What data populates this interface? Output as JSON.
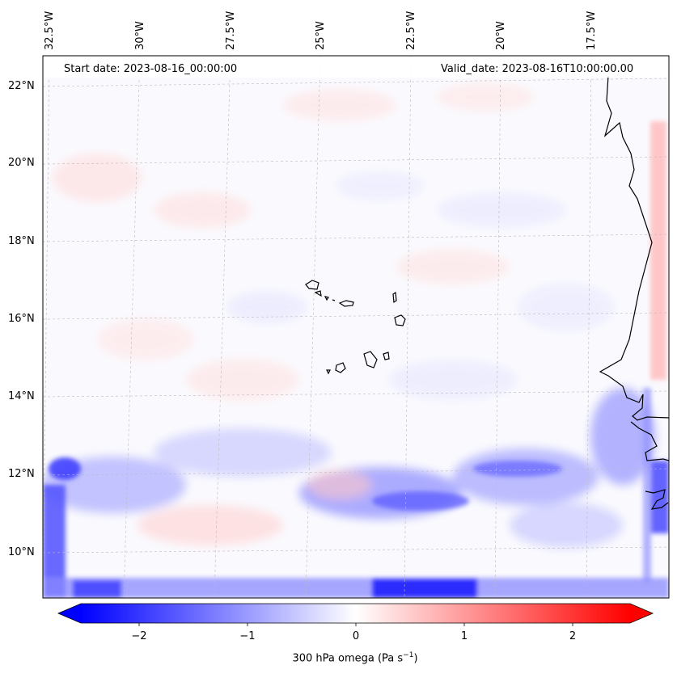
{
  "map": {
    "start_label": "Start date: 2023-08-16_00:00:00",
    "valid_label": "Valid_date: 2023-08-16T10:00:00.00",
    "field": "300 hPa omega",
    "units": "Pa s⁻¹",
    "colormap": "bwr",
    "extent": {
      "lon": [
        -32.5,
        -15.2
      ],
      "lat": [
        8.8,
        22.8
      ]
    },
    "gridlines": "dashed light gray",
    "lon_labels": [
      "32.5°W",
      "30°W",
      "27.5°W",
      "25°W",
      "22.5°W",
      "20°W",
      "17.5°W"
    ],
    "lat_labels": [
      "22°N",
      "20°N",
      "18°N",
      "16°N",
      "14°N",
      "12°N",
      "10°N"
    ],
    "features": [
      "Cape Verde Islands",
      "West African coastline"
    ]
  },
  "colorbar": {
    "title": "300 hPa omega (Pa s",
    "title_exp": "−1",
    "title_close": ")",
    "ticks": [
      "−2",
      "−1",
      "0",
      "1",
      "2"
    ],
    "range": [
      -2.75,
      2.75
    ],
    "extend": "both",
    "colors": {
      "min": "#0000ff",
      "mid": "#ffffff",
      "max": "#ff0000"
    }
  }
}
